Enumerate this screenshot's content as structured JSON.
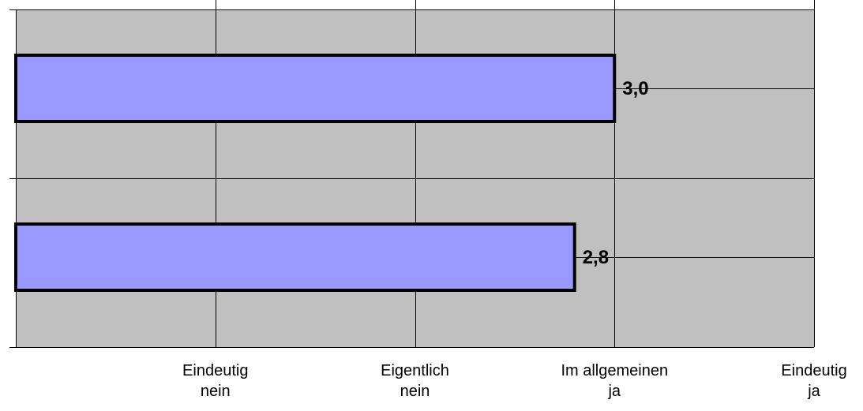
{
  "chart_data": {
    "type": "bar",
    "orientation": "horizontal",
    "categories": [
      "",
      ""
    ],
    "values": [
      3.0,
      2.8
    ],
    "data_labels": [
      "3,0",
      "2,8"
    ],
    "xlim": [
      0,
      4
    ],
    "x_ticks": [
      1,
      2,
      3,
      4
    ],
    "x_tick_labels": [
      [
        "Eindeutig",
        "nein"
      ],
      [
        "Eigentlich",
        "nein"
      ],
      [
        "Im allgemeinen",
        "ja"
      ],
      [
        "Eindeutig",
        "ja"
      ]
    ],
    "grid": true,
    "legend": "none",
    "colors": {
      "plot_background": "#c0c0c0",
      "bar_fill": "#9999ff",
      "bar_stroke": "#000000",
      "grid": "#000000"
    }
  }
}
